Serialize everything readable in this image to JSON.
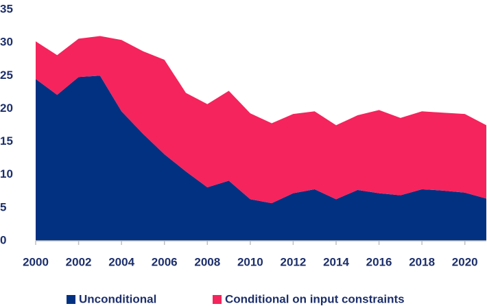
{
  "chart_data": {
    "type": "stacked-area",
    "x": [
      2000,
      2001,
      2002,
      2003,
      2004,
      2005,
      2006,
      2007,
      2008,
      2009,
      2010,
      2011,
      2012,
      2013,
      2014,
      2015,
      2016,
      2017,
      2018,
      2019,
      2020,
      2021
    ],
    "series": [
      {
        "name": "Unconditional",
        "color": "#023182",
        "values": [
          24.5,
          22.1,
          24.8,
          25.0,
          19.6,
          16.2,
          13.1,
          10.5,
          8.1,
          9.1,
          6.3,
          5.7,
          7.2,
          7.8,
          6.3,
          7.7,
          7.2,
          6.9,
          7.8,
          7.6,
          7.3,
          6.4
        ]
      },
      {
        "name": "Conditional on input constraints",
        "color": "#f5245c",
        "values": [
          5.7,
          6.0,
          5.8,
          6.0,
          10.8,
          12.5,
          14.3,
          11.9,
          12.6,
          13.6,
          13.0,
          12.1,
          12.0,
          11.8,
          11.2,
          11.3,
          12.6,
          11.7,
          11.8,
          11.8,
          11.9,
          11.1
        ]
      }
    ],
    "xlim": [
      2000,
      2021
    ],
    "xticks": [
      2000,
      2002,
      2004,
      2006,
      2008,
      2010,
      2012,
      2014,
      2016,
      2018,
      2020
    ],
    "ylim": [
      0,
      35
    ],
    "yticks": [
      0,
      5,
      10,
      15,
      20,
      25,
      30,
      35
    ],
    "grid": false,
    "legend": "bottom"
  }
}
